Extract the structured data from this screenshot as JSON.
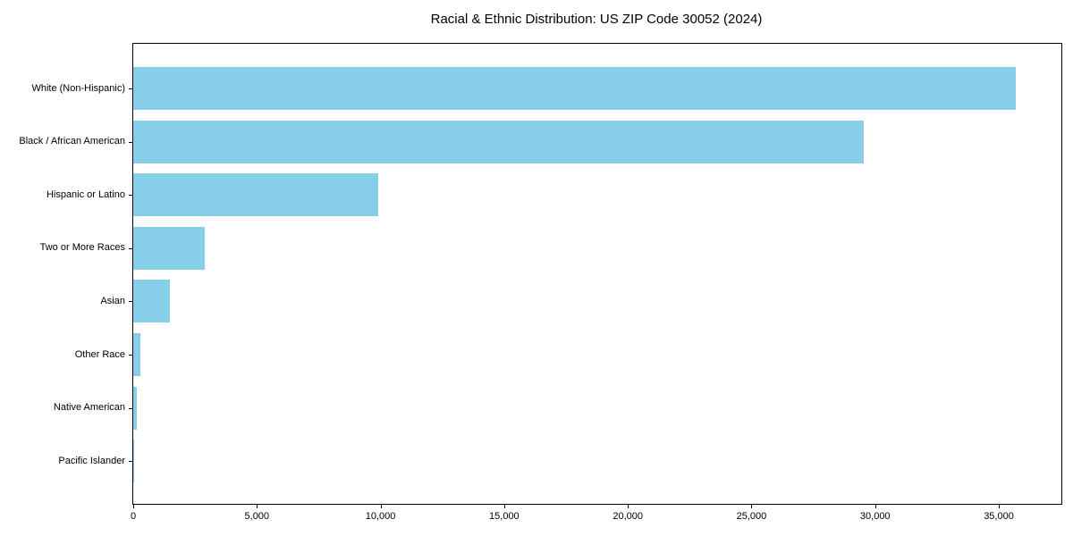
{
  "title": "Racial & Ethnic Distribution: US ZIP Code 30052 (2024)",
  "chart_data": {
    "type": "bar",
    "orientation": "horizontal",
    "title": "Racial & Ethnic Distribution: US ZIP Code 30052 (2024)",
    "xlabel": "",
    "ylabel": "",
    "categories": [
      "White (Non-Hispanic)",
      "Black / African American",
      "Hispanic or Latino",
      "Two or More Races",
      "Asian",
      "Other Race",
      "Native American",
      "Pacific Islander"
    ],
    "values": [
      35700,
      29550,
      9900,
      2900,
      1500,
      280,
      130,
      20
    ],
    "xlim": [
      0,
      37530
    ],
    "xticks": [
      0,
      5000,
      10000,
      15000,
      20000,
      25000,
      30000,
      35000
    ],
    "xtick_labels": [
      "0",
      "5,000",
      "10,000",
      "15,000",
      "20,000",
      "25,000",
      "30,000",
      "35,000"
    ],
    "bar_color": "#87CEEB",
    "grid": false,
    "legend": null
  },
  "colors": {
    "bar": "#87CEEB",
    "spine": "#000000",
    "background": "#ffffff",
    "text": "#000000"
  }
}
